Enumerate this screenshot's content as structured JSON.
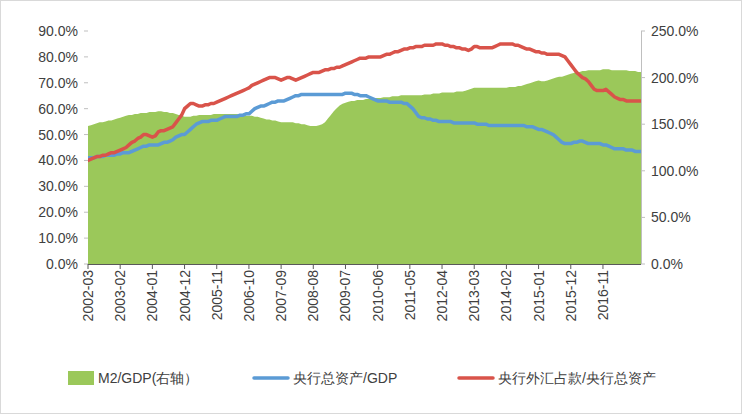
{
  "chart_data": {
    "type": "line",
    "categories": [
      "2002-03",
      null,
      null,
      null,
      null,
      null,
      null,
      null,
      null,
      null,
      null,
      "2003-02",
      null,
      null,
      null,
      null,
      null,
      null,
      null,
      null,
      null,
      null,
      "2004-01",
      null,
      null,
      null,
      null,
      null,
      null,
      null,
      null,
      null,
      null,
      "2004-12",
      null,
      null,
      null,
      null,
      null,
      null,
      null,
      null,
      null,
      null,
      "2005-11",
      null,
      null,
      null,
      null,
      null,
      null,
      null,
      null,
      null,
      null,
      "2006-10",
      null,
      null,
      null,
      null,
      null,
      null,
      null,
      null,
      null,
      null,
      "2007-09",
      null,
      null,
      null,
      null,
      null,
      null,
      null,
      null,
      null,
      null,
      "2008-08",
      null,
      null,
      null,
      null,
      null,
      null,
      null,
      null,
      null,
      null,
      "2009-07",
      null,
      null,
      null,
      null,
      null,
      null,
      null,
      null,
      null,
      null,
      "2010-06",
      null,
      null,
      null,
      null,
      null,
      null,
      null,
      null,
      null,
      null,
      "2011-05",
      null,
      null,
      null,
      null,
      null,
      null,
      null,
      null,
      null,
      null,
      "2012-04",
      null,
      null,
      null,
      null,
      null,
      null,
      null,
      null,
      null,
      null,
      "2013-03",
      null,
      null,
      null,
      null,
      null,
      null,
      null,
      null,
      null,
      null,
      "2014-02",
      null,
      null,
      null,
      null,
      null,
      null,
      null,
      null,
      null,
      null,
      "2015-01",
      null,
      null,
      null,
      null,
      null,
      null,
      null,
      null,
      null,
      null,
      "2015-12",
      null,
      null,
      null,
      null,
      null,
      null,
      null,
      null,
      null,
      null,
      "2016-11",
      null,
      null,
      null,
      null,
      null,
      null,
      null,
      null,
      null,
      null,
      null,
      null,
      null
    ],
    "series": [
      {
        "name": "M2/GDP(右轴）",
        "type": "area",
        "axis": "y2",
        "color": "#9bc85a",
        "values": [
          148,
          149,
          150,
          151,
          152,
          152,
          153,
          154,
          154,
          155,
          156,
          157,
          158,
          159,
          160,
          160,
          161,
          161,
          162,
          162,
          162,
          163,
          163,
          163,
          164,
          164,
          163,
          163,
          162,
          162,
          161,
          160,
          159,
          158,
          158,
          158,
          159,
          159,
          160,
          160,
          160,
          160,
          160,
          161,
          161,
          161,
          161,
          161,
          161,
          161,
          161,
          161,
          160,
          160,
          159,
          159,
          159,
          158,
          158,
          157,
          156,
          155,
          155,
          154,
          154,
          153,
          152,
          152,
          152,
          152,
          152,
          151,
          151,
          150,
          150,
          149,
          148,
          148,
          148,
          149,
          150,
          152,
          156,
          160,
          164,
          167,
          170,
          172,
          173,
          174,
          175,
          175,
          176,
          176,
          176,
          177,
          177,
          178,
          178,
          178,
          178,
          179,
          179,
          179,
          180,
          180,
          180,
          181,
          181,
          181,
          181,
          181,
          181,
          181,
          181,
          182,
          182,
          182,
          183,
          183,
          183,
          184,
          184,
          184,
          184,
          184,
          185,
          185,
          185,
          186,
          187,
          188,
          189,
          189,
          189,
          189,
          189,
          189,
          189,
          189,
          189,
          189,
          189,
          189,
          190,
          190,
          190,
          191,
          191,
          192,
          193,
          194,
          195,
          196,
          197,
          196,
          196,
          197,
          198,
          199,
          200,
          201,
          201,
          202,
          203,
          204,
          205,
          206,
          206,
          207,
          207,
          208,
          208,
          208,
          208,
          208,
          209,
          209,
          209,
          208,
          208,
          208,
          208,
          208,
          208,
          207,
          207,
          207,
          206,
          206
        ]
      },
      {
        "name": "央行总资产/GDP",
        "type": "line",
        "color": "#5b9bd5",
        "values": [
          41,
          41,
          41,
          41.5,
          41.5,
          41.5,
          42,
          42,
          42,
          42,
          42.5,
          42.5,
          43,
          43,
          43,
          43.5,
          44,
          44.5,
          45,
          45.5,
          45.5,
          46,
          46,
          46,
          46,
          46.5,
          47,
          47,
          47.5,
          48,
          49,
          49.5,
          50,
          50,
          51,
          52,
          53,
          54,
          54.5,
          55,
          55,
          55,
          55.5,
          55.5,
          55.5,
          56,
          56.5,
          57,
          57,
          57,
          57,
          57,
          57.5,
          57.5,
          58,
          58,
          59,
          60,
          60.5,
          61,
          61,
          61.5,
          62,
          62.5,
          62.5,
          63,
          63,
          63,
          63.5,
          64,
          64.5,
          65,
          65,
          65.5,
          65.5,
          65.5,
          65.5,
          65.5,
          65.5,
          65.5,
          65.5,
          65.5,
          65.5,
          65.5,
          65.5,
          65.5,
          65.5,
          65.5,
          66,
          66,
          66,
          65.5,
          65.5,
          65,
          65,
          65,
          64.5,
          64,
          63.5,
          63,
          63,
          63,
          63,
          62.5,
          62.5,
          62.5,
          62.5,
          62.5,
          62,
          62,
          61,
          60,
          58.5,
          57,
          56.5,
          56.5,
          56,
          56,
          55.5,
          55.5,
          55,
          55,
          55,
          55,
          55,
          54.5,
          54.5,
          54.5,
          54.5,
          54.5,
          54.5,
          54.5,
          54.5,
          54,
          54,
          54,
          54,
          53.5,
          53.5,
          53.5,
          53.5,
          53.5,
          53.5,
          53.5,
          53.5,
          53.5,
          53.5,
          53.5,
          53.5,
          53.5,
          53,
          53,
          53,
          52.5,
          52,
          52,
          51.5,
          51,
          50.5,
          50,
          49,
          48,
          47,
          46.5,
          46.5,
          46.5,
          47,
          47,
          47.5,
          47.5,
          47,
          46.5,
          46.5,
          46.5,
          46.5,
          46.5,
          46,
          46,
          45.5,
          45,
          44.5,
          44.5,
          44.5,
          44.5,
          44,
          44,
          44,
          43.5,
          43.5,
          43.5
        ]
      },
      {
        "name": "央行外汇占款/央行总资产",
        "type": "line",
        "color": "#d9534a",
        "values": [
          40,
          40.5,
          41,
          41.5,
          41.5,
          42,
          42,
          42.5,
          43,
          43,
          43.5,
          44,
          44.5,
          45,
          46,
          47,
          47.5,
          48.5,
          49,
          50,
          50,
          49.5,
          49,
          49.5,
          51,
          51.5,
          51.5,
          52,
          52.5,
          53,
          54.5,
          56,
          57.5,
          60,
          61,
          62,
          62,
          61.5,
          61,
          61,
          61.5,
          61.5,
          62,
          62,
          62.5,
          63,
          63.5,
          64,
          64.5,
          65,
          65.5,
          66,
          66.5,
          67,
          67.5,
          68,
          69,
          69.5,
          70,
          70.5,
          71,
          71.5,
          72,
          72,
          72,
          71.5,
          71,
          71.5,
          72,
          72,
          71.5,
          71,
          71.5,
          72,
          72.5,
          73,
          73.5,
          74,
          74,
          74,
          74.5,
          75,
          75,
          75.5,
          75.5,
          76,
          76,
          76.5,
          77,
          77.5,
          78,
          78.5,
          79,
          79.5,
          79.5,
          79.5,
          80,
          80,
          80,
          80,
          80,
          80.5,
          81,
          81,
          81.5,
          82,
          82,
          82.5,
          83,
          83,
          83.5,
          83.5,
          84,
          84,
          84,
          84.5,
          84.5,
          84.5,
          84.5,
          85,
          85,
          85,
          84.5,
          84.5,
          84,
          84,
          83.5,
          83.5,
          83,
          83,
          82.5,
          83,
          84,
          84,
          83.5,
          83.5,
          83.5,
          83.5,
          83.5,
          84,
          84.5,
          85,
          85,
          85,
          85,
          85,
          84.5,
          84.5,
          84,
          83.5,
          83,
          83,
          82.5,
          82,
          82,
          81.5,
          81.5,
          81,
          81,
          81,
          81,
          81,
          80.5,
          80,
          78.5,
          77,
          75.5,
          74,
          73,
          72,
          71.5,
          70.5,
          69,
          67.5,
          67,
          67,
          67,
          67.5,
          66.5,
          65.5,
          64.5,
          64,
          63.5,
          63.5,
          63,
          63,
          63,
          63,
          63,
          63
        ]
      }
    ],
    "ylim": [
      0,
      90
    ],
    "yticks": [
      {
        "value": 0,
        "label": "0.0%"
      },
      {
        "value": 10,
        "label": "10.0%"
      },
      {
        "value": 20,
        "label": "20.0%"
      },
      {
        "value": 30,
        "label": "30.0%"
      },
      {
        "value": 40,
        "label": "40.0%"
      },
      {
        "value": 50,
        "label": "50.0%"
      },
      {
        "value": 60,
        "label": "60.0%"
      },
      {
        "value": 70,
        "label": "70.0%"
      },
      {
        "value": 80,
        "label": "80.0%"
      },
      {
        "value": 90,
        "label": "90.0%"
      }
    ],
    "y2lim": [
      0,
      250
    ],
    "y2ticks": [
      {
        "value": 0,
        "label": "0.0%"
      },
      {
        "value": 50,
        "label": "50.0%"
      },
      {
        "value": 100,
        "label": "100.0%"
      },
      {
        "value": 150,
        "label": "150.0%"
      },
      {
        "value": 200,
        "label": "200.0%"
      },
      {
        "value": 250,
        "label": "250.0%"
      }
    ],
    "grid": false,
    "legend": "bottom"
  }
}
